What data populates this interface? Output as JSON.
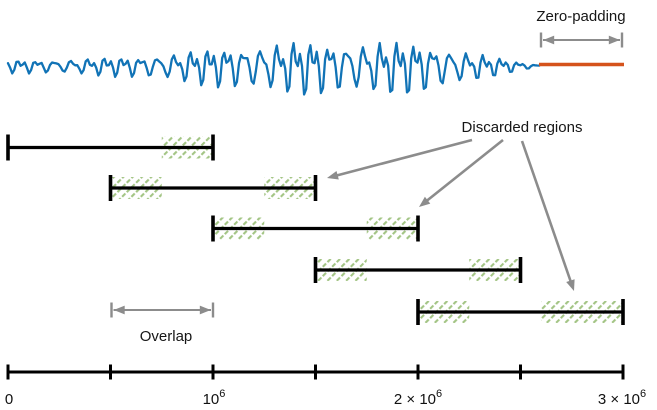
{
  "figure": {
    "labels": {
      "zero_padding": "Zero-padding",
      "discarded_regions": "Discarded regions",
      "overlap": "Overlap"
    },
    "colors": {
      "signal": "#1173b6",
      "zero_padding": "#d5531c",
      "annotation_gray": "#8c8c8c",
      "hatch_green": "#a2c483",
      "segment_black": "#000000",
      "text": "#161616"
    },
    "signal": {
      "span": [
        0,
        2600000
      ]
    },
    "zero_padding": {
      "span": [
        2600000,
        3000000
      ]
    },
    "windows": [
      {
        "span": [
          0,
          1000000
        ],
        "discarded": [
          [
            750000,
            1000000
          ]
        ]
      },
      {
        "span": [
          500000,
          1500000
        ],
        "discarded": [
          [
            500000,
            750000
          ],
          [
            1250000,
            1500000
          ]
        ]
      },
      {
        "span": [
          1000000,
          2000000
        ],
        "discarded": [
          [
            1000000,
            1250000
          ],
          [
            1750000,
            2000000
          ]
        ]
      },
      {
        "span": [
          1500000,
          2500000
        ],
        "discarded": [
          [
            1500000,
            1750000
          ],
          [
            2250000,
            2500000
          ]
        ]
      },
      {
        "span": [
          2000000,
          3000000
        ],
        "discarded": [
          [
            2000000,
            2250000
          ],
          [
            2600000,
            3000000
          ]
        ]
      }
    ],
    "overlap_span": [
      500000,
      1000000
    ],
    "axis": {
      "range": [
        0,
        3000000
      ],
      "tick_values": [
        0,
        500000,
        1000000,
        1500000,
        2000000,
        2500000,
        3000000
      ],
      "labeled_tick_values": [
        0,
        1000000,
        2000000,
        3000000
      ],
      "ticks": [
        {
          "pre": "0",
          "base": "",
          "sup": ""
        },
        {
          "pre": "",
          "base": "10",
          "sup": "6"
        },
        {
          "pre": "2 × ",
          "base": "10",
          "sup": "6"
        },
        {
          "pre": "3 × ",
          "base": "10",
          "sup": "6"
        }
      ]
    }
  }
}
